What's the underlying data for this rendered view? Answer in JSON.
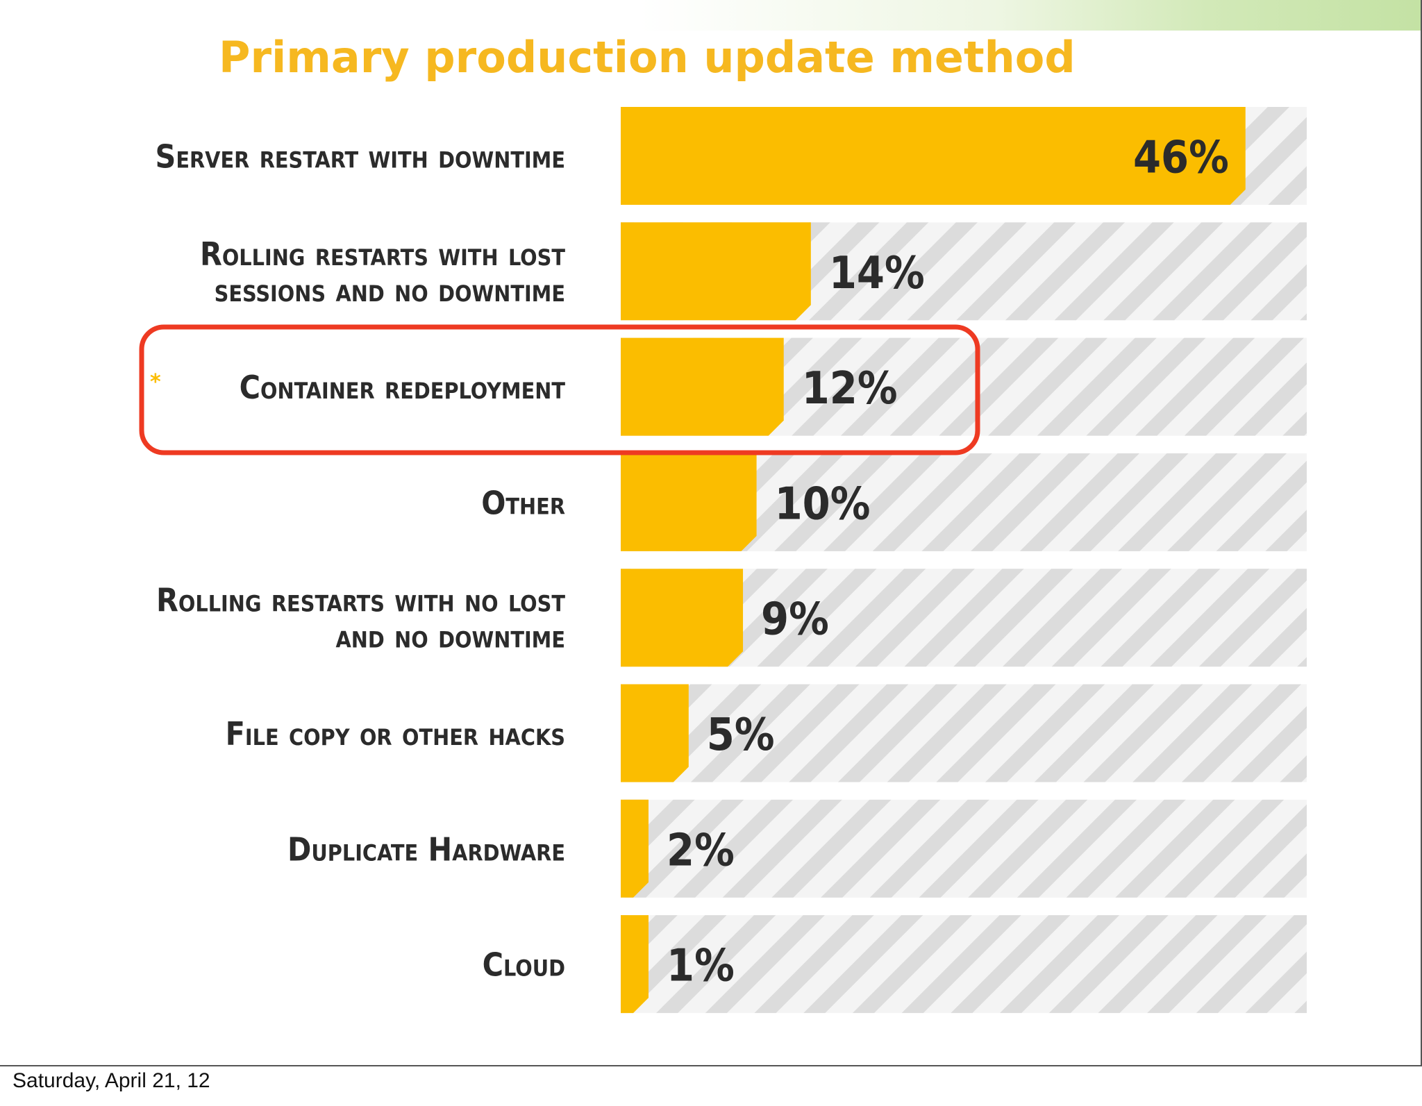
{
  "footer": {
    "date": "Saturday, April 21, 12"
  },
  "colors": {
    "bar": "#fbbd00",
    "title": "#f6b820",
    "highlight": "#ee3a22",
    "stripe_dark": "#dcdcdc",
    "stripe_light": "#f4f4f4",
    "asterisk": "#fbbd00"
  },
  "chart_data": {
    "type": "bar",
    "orientation": "horizontal",
    "title": "Primary production update method",
    "xlabel": "",
    "ylabel": "",
    "xlim": [
      0,
      50
    ],
    "grid": false,
    "legend": "none",
    "categories": [
      {
        "lines": [
          "Server restart with downtime"
        ]
      },
      {
        "lines": [
          "Rolling restarts with lost",
          "sessions and no downtime"
        ]
      },
      {
        "lines": [
          "Container redeployment"
        ],
        "asterisk": "*",
        "highlighted": true
      },
      {
        "lines": [
          "Other"
        ]
      },
      {
        "lines": [
          "Rolling restarts with no lost",
          "and no downtime"
        ]
      },
      {
        "lines": [
          "File copy or other hacks"
        ]
      },
      {
        "lines": [
          "Duplicate Hardware"
        ]
      },
      {
        "lines": [
          "Cloud"
        ]
      }
    ],
    "values": [
      46,
      14,
      12,
      10,
      9,
      5,
      2,
      1
    ],
    "value_labels": [
      "46%",
      "14%",
      "12%",
      "10%",
      "9%",
      "5%",
      "2%",
      "1%"
    ]
  }
}
